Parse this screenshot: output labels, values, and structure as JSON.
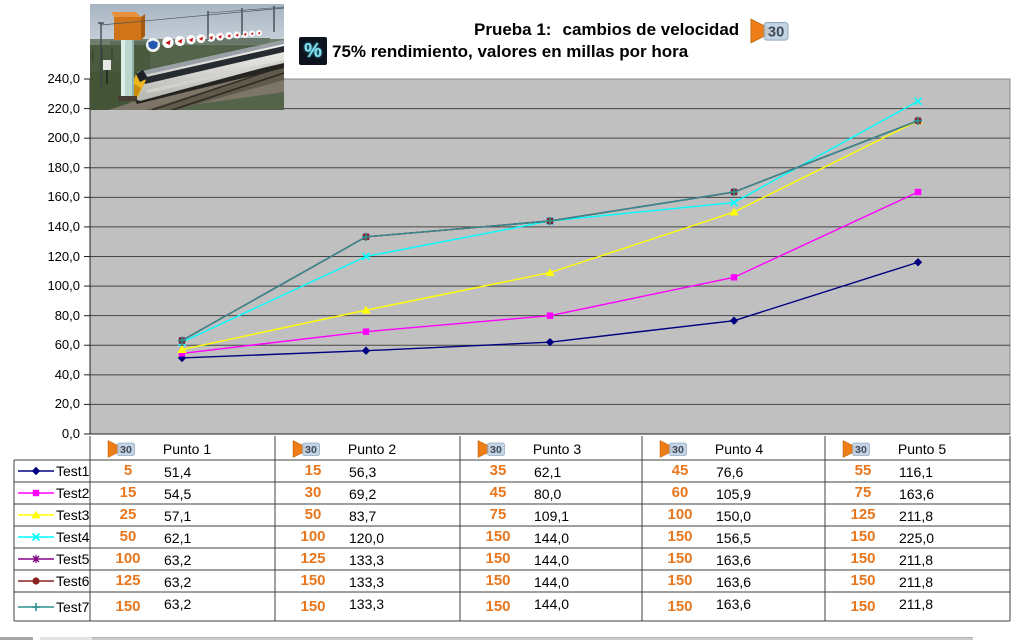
{
  "header": {
    "title_prefix": "Prueba 1:",
    "title_main": "cambios de velocidad",
    "subtitle_icon": "%",
    "subtitle": "75% rendimiento, valores en millas por hora",
    "speed_flag_label": "30"
  },
  "chart_data": {
    "type": "line",
    "title": "Prueba 1: cambios de velocidad",
    "subtitle": "75% rendimiento, valores en millas por hora",
    "categories": [
      "Punto 1",
      "Punto 2",
      "Punto 3",
      "Punto 4",
      "Punto 5"
    ],
    "ylim": [
      0,
      240
    ],
    "y_tick_step": 20,
    "y_tick_labels": [
      "240,0",
      "220,0",
      "200,0",
      "180,0",
      "160,0",
      "140,0",
      "120,0",
      "100,0",
      "80,0",
      "60,0",
      "40,0",
      "20,0",
      "0,0"
    ],
    "grid": true,
    "plot_background": "#c0c0c0",
    "legend_position": "left-table",
    "number_format": "decimal-comma",
    "series": [
      {
        "name": "Test1",
        "color": "#000080",
        "marker": "diamond",
        "speed_limits": [
          5,
          15,
          35,
          45,
          55
        ],
        "values": [
          51.4,
          56.3,
          62.1,
          76.6,
          116.1
        ]
      },
      {
        "name": "Test2",
        "color": "#ff00ff",
        "marker": "square",
        "speed_limits": [
          15,
          30,
          45,
          60,
          75
        ],
        "values": [
          54.5,
          69.2,
          80.0,
          105.9,
          163.6
        ]
      },
      {
        "name": "Test3",
        "color": "#ffff00",
        "marker": "triangle",
        "speed_limits": [
          25,
          50,
          75,
          100,
          125
        ],
        "values": [
          57.1,
          83.7,
          109.1,
          150.0,
          211.8
        ]
      },
      {
        "name": "Test4",
        "color": "#00ffff",
        "marker": "x",
        "speed_limits": [
          50,
          100,
          150,
          150,
          150
        ],
        "values": [
          62.1,
          120.0,
          144.0,
          156.5,
          225.0
        ]
      },
      {
        "name": "Test5",
        "color": "#800080",
        "marker": "star",
        "speed_limits": [
          100,
          125,
          150,
          150,
          150
        ],
        "values": [
          63.2,
          133.3,
          144.0,
          163.6,
          211.8
        ]
      },
      {
        "name": "Test6",
        "color": "#8b2020",
        "marker": "circle",
        "speed_limits": [
          125,
          150,
          150,
          150,
          150
        ],
        "values": [
          63.2,
          133.3,
          144.0,
          163.6,
          211.8
        ]
      },
      {
        "name": "Test7",
        "color": "#2f8f8f",
        "marker": "plus",
        "speed_limits": [
          150,
          150,
          150,
          150,
          150
        ],
        "values": [
          63.2,
          133.3,
          144.0,
          163.6,
          211.8
        ]
      }
    ]
  },
  "colors": {
    "accent_orange": "#e8761c",
    "plot_bg": "#c0c0c0",
    "grid_line": "#454545",
    "plot_border": "#8a8a8a",
    "table_border": "#404040"
  }
}
